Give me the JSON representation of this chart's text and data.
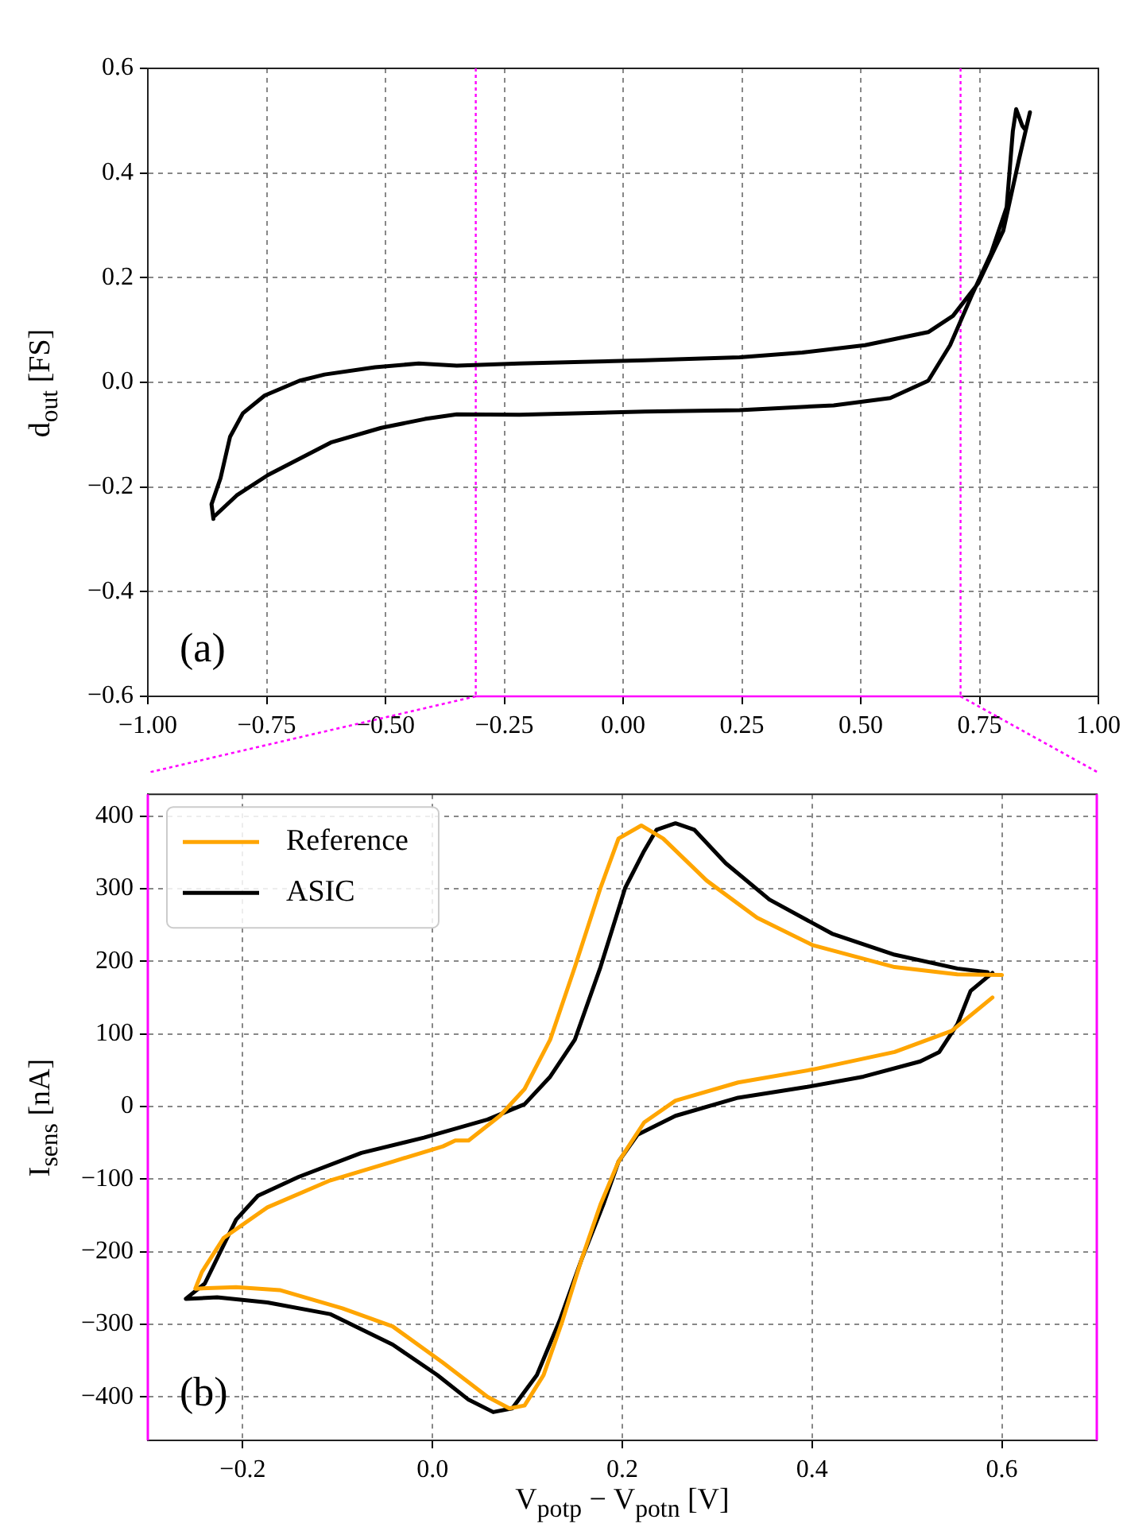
{
  "chart_data": [
    {
      "type": "line",
      "ylabel": "d$_{out}$ [FS]",
      "annotations": [
        "(a)"
      ],
      "grid": true,
      "xlim": [
        -1,
        1
      ],
      "ylim": [
        -0.6,
        0.6
      ],
      "xticks": [
        {
          "value": -1,
          "label": "−1.00"
        },
        {
          "value": -0.75,
          "label": "−0.75"
        },
        {
          "value": -0.5,
          "label": "−0.50"
        },
        {
          "value": -0.25,
          "label": "−0.25"
        },
        {
          "value": 0,
          "label": "0.00"
        },
        {
          "value": 0.25,
          "label": "0.25"
        },
        {
          "value": 0.5,
          "label": "0.50"
        },
        {
          "value": 0.75,
          "label": "0.75"
        },
        {
          "value": 1,
          "label": "1.00"
        }
      ],
      "yticks": [
        {
          "value": -0.6,
          "label": "−0.6"
        },
        {
          "value": -0.4,
          "label": "−0.4"
        },
        {
          "value": -0.2,
          "label": "−0.2"
        },
        {
          "value": 0,
          "label": "0.0"
        },
        {
          "value": 0.2,
          "label": "0.2"
        },
        {
          "value": 0.4,
          "label": "0.4"
        },
        {
          "value": 0.6,
          "label": "0.6"
        }
      ],
      "ref_lines": [
        {
          "axis": "x",
          "value": -0.31,
          "color": "#ff00ff",
          "line_style": "dotted"
        },
        {
          "axis": "x",
          "value": 0.71,
          "color": "#ff00ff",
          "line_style": "dotted"
        }
      ],
      "series": [
        {
          "color": "#000000",
          "x": [
            -0.862,
            -0.866,
            -0.847,
            -0.827,
            -0.8,
            -0.754,
            -0.681,
            -0.628,
            -0.522,
            -0.43,
            -0.35,
            -0.218,
            -0.086,
            0.046,
            0.245,
            0.377,
            0.509,
            0.642,
            0.694,
            0.747,
            0.8,
            0.833,
            0.856,
            0.847,
            0.84,
            0.827,
            0.82,
            0.807,
            0.774,
            0.734,
            0.688,
            0.642,
            0.562,
            0.443,
            0.245,
            0.046,
            -0.218,
            -0.35,
            -0.417,
            -0.509,
            -0.615,
            -0.747,
            -0.813,
            -0.86
          ],
          "values": [
            -0.261,
            -0.233,
            -0.183,
            -0.104,
            -0.059,
            -0.025,
            0.003,
            0.015,
            0.029,
            0.036,
            0.032,
            0.036,
            0.039,
            0.042,
            0.048,
            0.057,
            0.071,
            0.096,
            0.127,
            0.189,
            0.29,
            0.426,
            0.516,
            0.482,
            0.49,
            0.522,
            0.48,
            0.335,
            0.246,
            0.167,
            0.071,
            0.003,
            -0.03,
            -0.044,
            -0.053,
            -0.056,
            -0.062,
            -0.061,
            -0.07,
            -0.087,
            -0.115,
            -0.177,
            -0.216,
            -0.256
          ]
        }
      ]
    },
    {
      "type": "line",
      "xlabel": "V$_{potp}$ − V$_{potn}$ [V]",
      "ylabel": "I$_{sens}$ [nA]",
      "annotations": [
        "(b)"
      ],
      "grid": true,
      "legend": "top left",
      "xlim": [
        -0.3,
        0.7
      ],
      "ylim": [
        -460,
        430
      ],
      "xticks": [
        {
          "value": -0.2,
          "label": "−0.2"
        },
        {
          "value": 0,
          "label": "0.0"
        },
        {
          "value": 0.2,
          "label": "0.2"
        },
        {
          "value": 0.4,
          "label": "0.4"
        },
        {
          "value": 0.6,
          "label": "0.6"
        }
      ],
      "yticks": [
        {
          "value": -400,
          "label": "−400"
        },
        {
          "value": -300,
          "label": "−300"
        },
        {
          "value": -200,
          "label": "−200"
        },
        {
          "value": -100,
          "label": "−100"
        },
        0,
        100,
        200,
        300,
        400
      ],
      "series": [
        {
          "name": "Reference",
          "color": "#ffa500",
          "x": [
            0.59,
            0.547,
            0.487,
            0.401,
            0.322,
            0.256,
            0.223,
            0.196,
            0.177,
            0.157,
            0.137,
            0.117,
            0.097,
            0.081,
            0.058,
            0.011,
            -0.042,
            -0.095,
            -0.161,
            -0.207,
            -0.25,
            -0.243,
            -0.22,
            -0.174,
            -0.108,
            -0.042,
            0.011,
            0.024,
            0.038,
            0.071,
            0.097,
            0.124,
            0.15,
            0.177,
            0.196,
            0.22,
            0.243,
            0.289,
            0.342,
            0.401,
            0.487,
            0.553,
            0.6
          ],
          "values": [
            150,
            104,
            75,
            51,
            33,
            8,
            -22,
            -76,
            -135,
            -211,
            -295,
            -370,
            -412,
            -416,
            -400,
            -353,
            -303,
            -278,
            -253,
            -249,
            -251,
            -228,
            -181,
            -139,
            -102,
            -76,
            -55,
            -47,
            -47,
            -13,
            24,
            92,
            192,
            301,
            369,
            387,
            369,
            311,
            260,
            222,
            192,
            182,
            181
          ]
        },
        {
          "name": "ASIC",
          "color": "#000000",
          "x": [
            0.59,
            0.567,
            0.553,
            0.534,
            0.514,
            0.454,
            0.395,
            0.322,
            0.256,
            0.216,
            0.196,
            0.18,
            0.157,
            0.134,
            0.11,
            0.084,
            0.064,
            0.038,
            0.005,
            -0.042,
            -0.108,
            -0.174,
            -0.227,
            -0.26,
            -0.24,
            -0.207,
            -0.184,
            -0.141,
            -0.075,
            -0.009,
            0.058,
            0.097,
            0.124,
            0.15,
            0.177,
            0.203,
            0.223,
            0.236,
            0.256,
            0.276,
            0.309,
            0.355,
            0.421,
            0.487,
            0.553,
            0.585
          ],
          "values": [
            184,
            159,
            113,
            75,
            62,
            41,
            27,
            12,
            -13,
            -39,
            -76,
            -135,
            -211,
            -295,
            -370,
            -416,
            -421,
            -404,
            -370,
            -328,
            -286,
            -270,
            -263,
            -265,
            -244,
            -156,
            -123,
            -97,
            -64,
            -43,
            -18,
            3,
            41,
            92,
            192,
            301,
            352,
            381,
            390,
            381,
            335,
            285,
            238,
            209,
            190,
            185
          ]
        }
      ]
    }
  ]
}
